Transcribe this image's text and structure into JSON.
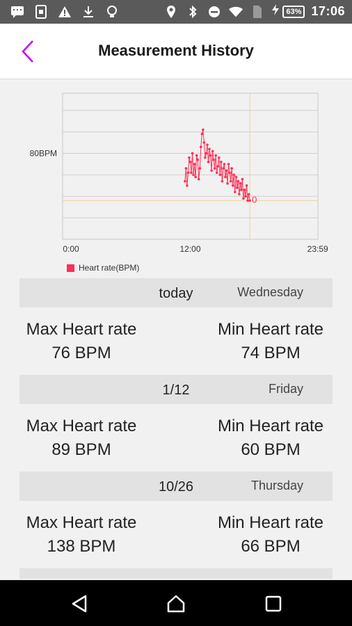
{
  "status_bar": {
    "battery": "63%",
    "time": "17:06",
    "icons": [
      "message-icon",
      "sim-icon",
      "warning-icon",
      "download-icon",
      "bulb-icon",
      "location-icon",
      "bluetooth-icon",
      "do-not-disturb-icon",
      "wifi-icon",
      "no-sim-icon",
      "charging-icon"
    ]
  },
  "app_bar": {
    "title": "Measurement History",
    "back_icon": "chevron-left-icon",
    "accent": "#c000ff"
  },
  "chart_data": {
    "type": "line",
    "y_label_80": "80BPM",
    "x_ticks": [
      "0:00",
      "12:00",
      "23:59"
    ],
    "legend": "Heart rate(BPM)",
    "color": "#ff2f55",
    "cursor_color": "#f3cf9b",
    "xlim": [
      0,
      24
    ],
    "ylim": [
      40,
      108
    ],
    "grid": true,
    "cursor_time_hours": 17.6,
    "cursor_value": 58,
    "cursor_label": "0",
    "x": [
      11.5,
      11.6,
      11.7,
      11.8,
      11.9,
      12.0,
      12.1,
      12.2,
      12.3,
      12.4,
      12.5,
      12.6,
      12.7,
      12.8,
      12.9,
      13.0,
      13.1,
      13.2,
      13.3,
      13.4,
      13.5,
      13.6,
      13.7,
      13.8,
      13.9,
      14.0,
      14.1,
      14.2,
      14.3,
      14.4,
      14.5,
      14.6,
      14.7,
      14.8,
      14.9,
      15.0,
      15.1,
      15.2,
      15.3,
      15.4,
      15.5,
      15.6,
      15.7,
      15.8,
      15.9,
      16.0,
      16.1,
      16.2,
      16.3,
      16.4,
      16.5,
      16.6,
      16.7,
      16.8,
      16.9,
      17.0,
      17.1,
      17.2,
      17.3,
      17.4,
      17.5,
      17.6
    ],
    "y": [
      67,
      73,
      65,
      71,
      78,
      76,
      71,
      80,
      70,
      75,
      69,
      79,
      77,
      68,
      73,
      83,
      89,
      91,
      85,
      78,
      80,
      84,
      76,
      82,
      79,
      72,
      81,
      77,
      73,
      79,
      71,
      74,
      78,
      70,
      76,
      67,
      73,
      75,
      69,
      72,
      66,
      75,
      71,
      67,
      73,
      65,
      70,
      62,
      69,
      64,
      67,
      61,
      66,
      63,
      68,
      59,
      63,
      60,
      65,
      58,
      61,
      58
    ]
  },
  "history": [
    {
      "date": "today",
      "weekday": "Wednesday",
      "max_label": "Max Heart rate",
      "max_value": "76 BPM",
      "min_label": "Min Heart rate",
      "min_value": "74 BPM"
    },
    {
      "date": "1/12",
      "weekday": "Friday",
      "max_label": "Max Heart rate",
      "max_value": "89 BPM",
      "min_label": "Min Heart rate",
      "min_value": "60 BPM"
    },
    {
      "date": "10/26",
      "weekday": "Thursday",
      "max_label": "Max Heart rate",
      "max_value": "138 BPM",
      "min_label": "Min Heart rate",
      "min_value": "66 BPM"
    }
  ],
  "nav_bar": {
    "icons": [
      "back-triangle-icon",
      "home-circle-icon",
      "recents-square-icon"
    ]
  }
}
